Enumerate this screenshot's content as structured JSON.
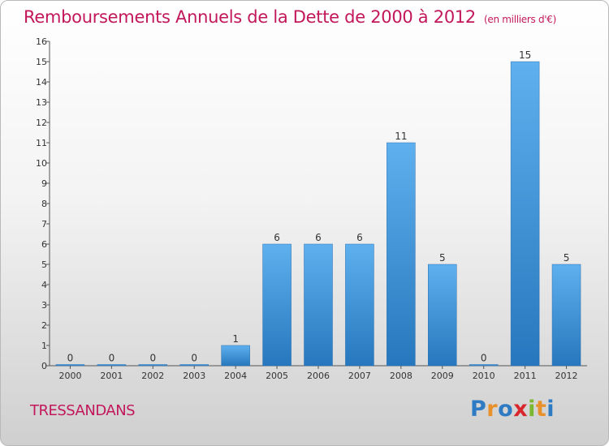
{
  "chart_data": {
    "type": "bar",
    "title": "Remboursements Annuels de la Dette de 2000 à 2012",
    "unit": "(en milliers d'€)",
    "categories": [
      "2000",
      "2001",
      "2002",
      "2003",
      "2004",
      "2005",
      "2006",
      "2007",
      "2008",
      "2009",
      "2010",
      "2011",
      "2012"
    ],
    "values": [
      0,
      0,
      0,
      0,
      1,
      6,
      6,
      6,
      11,
      5,
      0,
      15,
      5
    ],
    "ylim": [
      0,
      16
    ],
    "yticks": [
      0,
      1,
      2,
      3,
      4,
      5,
      6,
      7,
      8,
      9,
      10,
      11,
      12,
      13,
      14,
      15,
      16
    ],
    "grid": false,
    "bar_color": "#3a8fd9"
  },
  "commune": "TRESSANDANS",
  "logo": {
    "letters": [
      "P",
      "r",
      "o",
      "x",
      "i",
      "t",
      "i"
    ],
    "colors": [
      "#2e7bc4",
      "#e8912b",
      "#2e7bc4",
      "#d8262c",
      "#7cb82f",
      "#e8912b",
      "#2e7bc4"
    ]
  }
}
